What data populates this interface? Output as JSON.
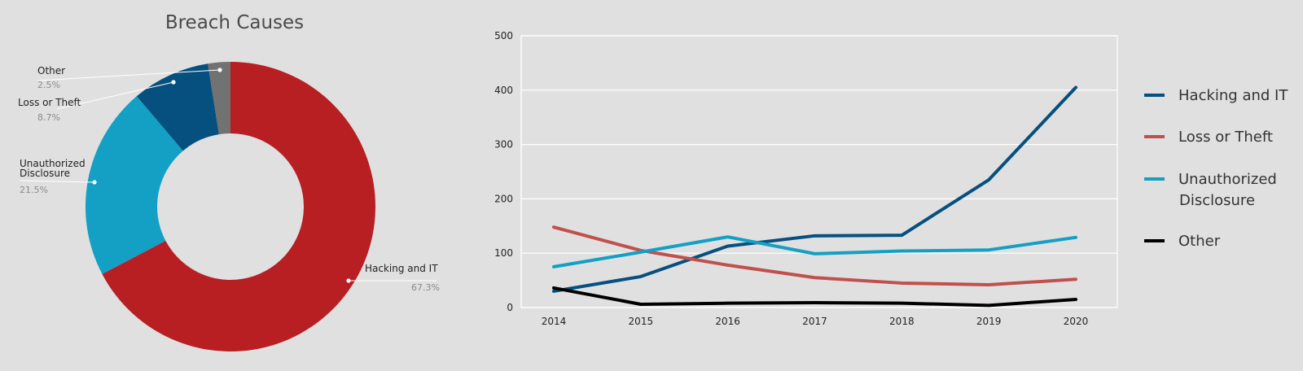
{
  "chart_data": [
    {
      "type": "pie",
      "title": "Breach Causes",
      "donut": true,
      "slices": [
        {
          "label": "Hacking and IT",
          "value": 67.3,
          "pct_label": "67.3%",
          "color": "#b71f23"
        },
        {
          "label": "Unauthorized Disclosure",
          "label_lines": [
            "Unauthorized",
            "Disclosure"
          ],
          "value": 21.5,
          "pct_label": "21.5%",
          "color": "#13a0c4"
        },
        {
          "label": "Loss or Theft",
          "value": 8.7,
          "pct_label": "8.7%",
          "color": "#05507e"
        },
        {
          "label": "Other",
          "value": 2.5,
          "pct_label": "2.5%",
          "color": "#727272"
        }
      ]
    },
    {
      "type": "line",
      "x": [
        "2014",
        "2015",
        "2016",
        "2017",
        "2018",
        "2019",
        "2020"
      ],
      "ylim": [
        0,
        500
      ],
      "yticks": [
        0,
        100,
        200,
        300,
        400,
        500
      ],
      "grid": true,
      "legend": "right",
      "series": [
        {
          "name": "Hacking and IT",
          "color": "#05507e",
          "values": [
            30,
            57,
            113,
            132,
            133,
            235,
            405
          ]
        },
        {
          "name": "Loss or Theft",
          "color": "#c0504d",
          "values": [
            148,
            105,
            78,
            55,
            45,
            42,
            52
          ]
        },
        {
          "name": "Unauthorized Disclosure",
          "name_lines": [
            "Unauthorized",
            "Disclosure"
          ],
          "color": "#13a0c4",
          "values": [
            75,
            102,
            130,
            99,
            104,
            106,
            129
          ]
        },
        {
          "name": "Other",
          "color": "#000000",
          "values": [
            36,
            6,
            8,
            9,
            8,
            4,
            15
          ]
        }
      ]
    }
  ]
}
